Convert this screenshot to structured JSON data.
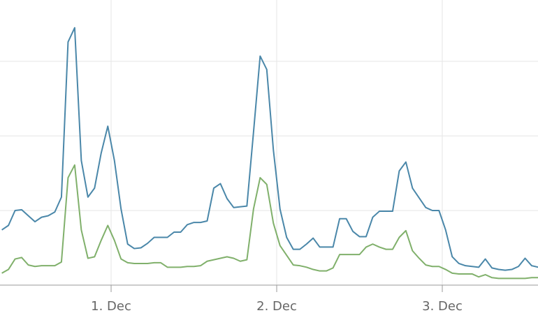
{
  "chart_data": {
    "type": "line",
    "x": [
      0.34,
      0.38,
      0.42,
      0.46,
      0.5,
      0.54,
      0.58,
      0.62,
      0.66,
      0.7,
      0.74,
      0.78,
      0.82,
      0.86,
      0.9,
      0.94,
      0.98,
      1.02,
      1.06,
      1.1,
      1.14,
      1.18,
      1.22,
      1.26,
      1.3,
      1.34,
      1.38,
      1.42,
      1.46,
      1.5,
      1.54,
      1.58,
      1.62,
      1.66,
      1.7,
      1.74,
      1.78,
      1.82,
      1.86,
      1.9,
      1.94,
      1.98,
      2.02,
      2.06,
      2.1,
      2.14,
      2.18,
      2.22,
      2.26,
      2.3,
      2.34,
      2.38,
      2.42,
      2.46,
      2.5,
      2.54,
      2.58,
      2.62,
      2.66,
      2.7,
      2.74,
      2.78,
      2.82,
      2.86,
      2.9,
      2.94,
      2.98,
      3.02,
      3.06,
      3.1,
      3.14,
      3.18,
      3.22,
      3.26,
      3.3,
      3.34,
      3.38,
      3.42,
      3.46,
      3.5,
      3.54,
      3.58
    ],
    "series": [
      {
        "color": "#4a87a9",
        "values": [
          0.74,
          0.8,
          1.0,
          1.01,
          0.93,
          0.85,
          0.91,
          0.93,
          0.98,
          1.18,
          3.26,
          3.45,
          1.67,
          1.18,
          1.3,
          1.77,
          2.13,
          1.67,
          1.02,
          0.55,
          0.49,
          0.5,
          0.56,
          0.64,
          0.64,
          0.64,
          0.71,
          0.71,
          0.81,
          0.84,
          0.84,
          0.86,
          1.3,
          1.36,
          1.16,
          1.04,
          1.05,
          1.06,
          2.05,
          3.07,
          2.89,
          1.81,
          1.02,
          0.64,
          0.48,
          0.48,
          0.55,
          0.63,
          0.51,
          0.51,
          0.51,
          0.89,
          0.89,
          0.72,
          0.65,
          0.65,
          0.91,
          0.99,
          0.99,
          0.99,
          1.53,
          1.65,
          1.3,
          1.17,
          1.04,
          1.0,
          1.0,
          0.74,
          0.38,
          0.29,
          0.26,
          0.25,
          0.24,
          0.35,
          0.23,
          0.21,
          0.2,
          0.21,
          0.25,
          0.36,
          0.26,
          0.24
        ]
      },
      {
        "color": "#80b06b",
        "values": [
          0.16,
          0.21,
          0.35,
          0.37,
          0.27,
          0.25,
          0.26,
          0.26,
          0.26,
          0.31,
          1.44,
          1.61,
          0.74,
          0.36,
          0.38,
          0.6,
          0.8,
          0.6,
          0.35,
          0.3,
          0.29,
          0.29,
          0.29,
          0.3,
          0.3,
          0.24,
          0.24,
          0.24,
          0.25,
          0.25,
          0.26,
          0.32,
          0.34,
          0.36,
          0.38,
          0.36,
          0.32,
          0.34,
          1.02,
          1.44,
          1.35,
          0.83,
          0.53,
          0.4,
          0.27,
          0.26,
          0.24,
          0.21,
          0.19,
          0.19,
          0.23,
          0.41,
          0.41,
          0.41,
          0.41,
          0.51,
          0.55,
          0.51,
          0.48,
          0.48,
          0.64,
          0.73,
          0.46,
          0.36,
          0.27,
          0.25,
          0.25,
          0.21,
          0.16,
          0.15,
          0.15,
          0.15,
          0.11,
          0.14,
          0.1,
          0.09,
          0.09,
          0.09,
          0.09,
          0.09,
          0.1,
          0.1
        ]
      }
    ],
    "xlim": [
      0.329,
      3.578
    ],
    "xticks": [
      {
        "value": 1,
        "label": "1. Dec"
      },
      {
        "value": 2,
        "label": "2. Dec"
      },
      {
        "value": 3,
        "label": "3. Dec"
      }
    ],
    "ylim": [
      0,
      3.822
    ],
    "yticks": [
      0,
      1,
      2,
      3
    ],
    "grid": true
  }
}
